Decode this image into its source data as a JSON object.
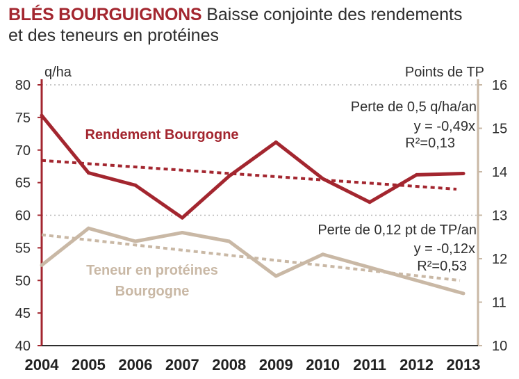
{
  "title": {
    "main": "BLÉS BOURGUIGNONS",
    "line1": "Baisse conjointe des rendements",
    "line2": "et des teneurs en protéines"
  },
  "colors": {
    "yield": "#a3262f",
    "protein": "#c9b8a5",
    "axis_left": "#a3262f",
    "axis_right": "#c9b8a5",
    "grid": "#b5b5b5",
    "text": "#2e2e2e"
  },
  "chart_data": {
    "type": "line",
    "title": "BLÉS BOURGUIGNONS Baisse conjointe des rendements et des teneurs en protéines",
    "x": [
      "2004",
      "2005",
      "2006",
      "2007",
      "2008",
      "2009",
      "2010",
      "2011",
      "2012",
      "2013"
    ],
    "y_left": {
      "label": "q/ha",
      "lim": [
        40,
        80
      ],
      "ticks": [
        40,
        45,
        50,
        55,
        60,
        65,
        70,
        75,
        80
      ]
    },
    "y_right": {
      "label": "Points de TP",
      "lim": [
        10,
        16
      ],
      "ticks": [
        10,
        11,
        12,
        13,
        14,
        15,
        16
      ]
    },
    "grid": "horizontal dotted at 60 and 80 q/ha",
    "series": [
      {
        "name": "Rendement Bourgogne",
        "axis": "left",
        "values": [
          75.3,
          66.5,
          64.6,
          59.6,
          66.0,
          71.2,
          65.6,
          62.0,
          66.2,
          66.4
        ],
        "trend": {
          "start": 68.4,
          "end": 64.0,
          "label": "Perte de 0,5 q/ha/an",
          "equation": "y = -0,49x",
          "r2": "R²=0,13"
        }
      },
      {
        "name": "Teneur en protéines Bourgogne",
        "name_lines": [
          "Teneur en protéines",
          "Bourgogne"
        ],
        "axis": "right",
        "values": [
          11.85,
          12.7,
          12.4,
          12.6,
          12.4,
          11.6,
          12.1,
          11.8,
          11.5,
          11.2
        ],
        "trend": {
          "start": 12.55,
          "end": 11.5,
          "label": "Perte de 0,12 pt de TP/an",
          "equation": "y = -0,12x",
          "r2": "R²=0,53"
        }
      }
    ]
  }
}
